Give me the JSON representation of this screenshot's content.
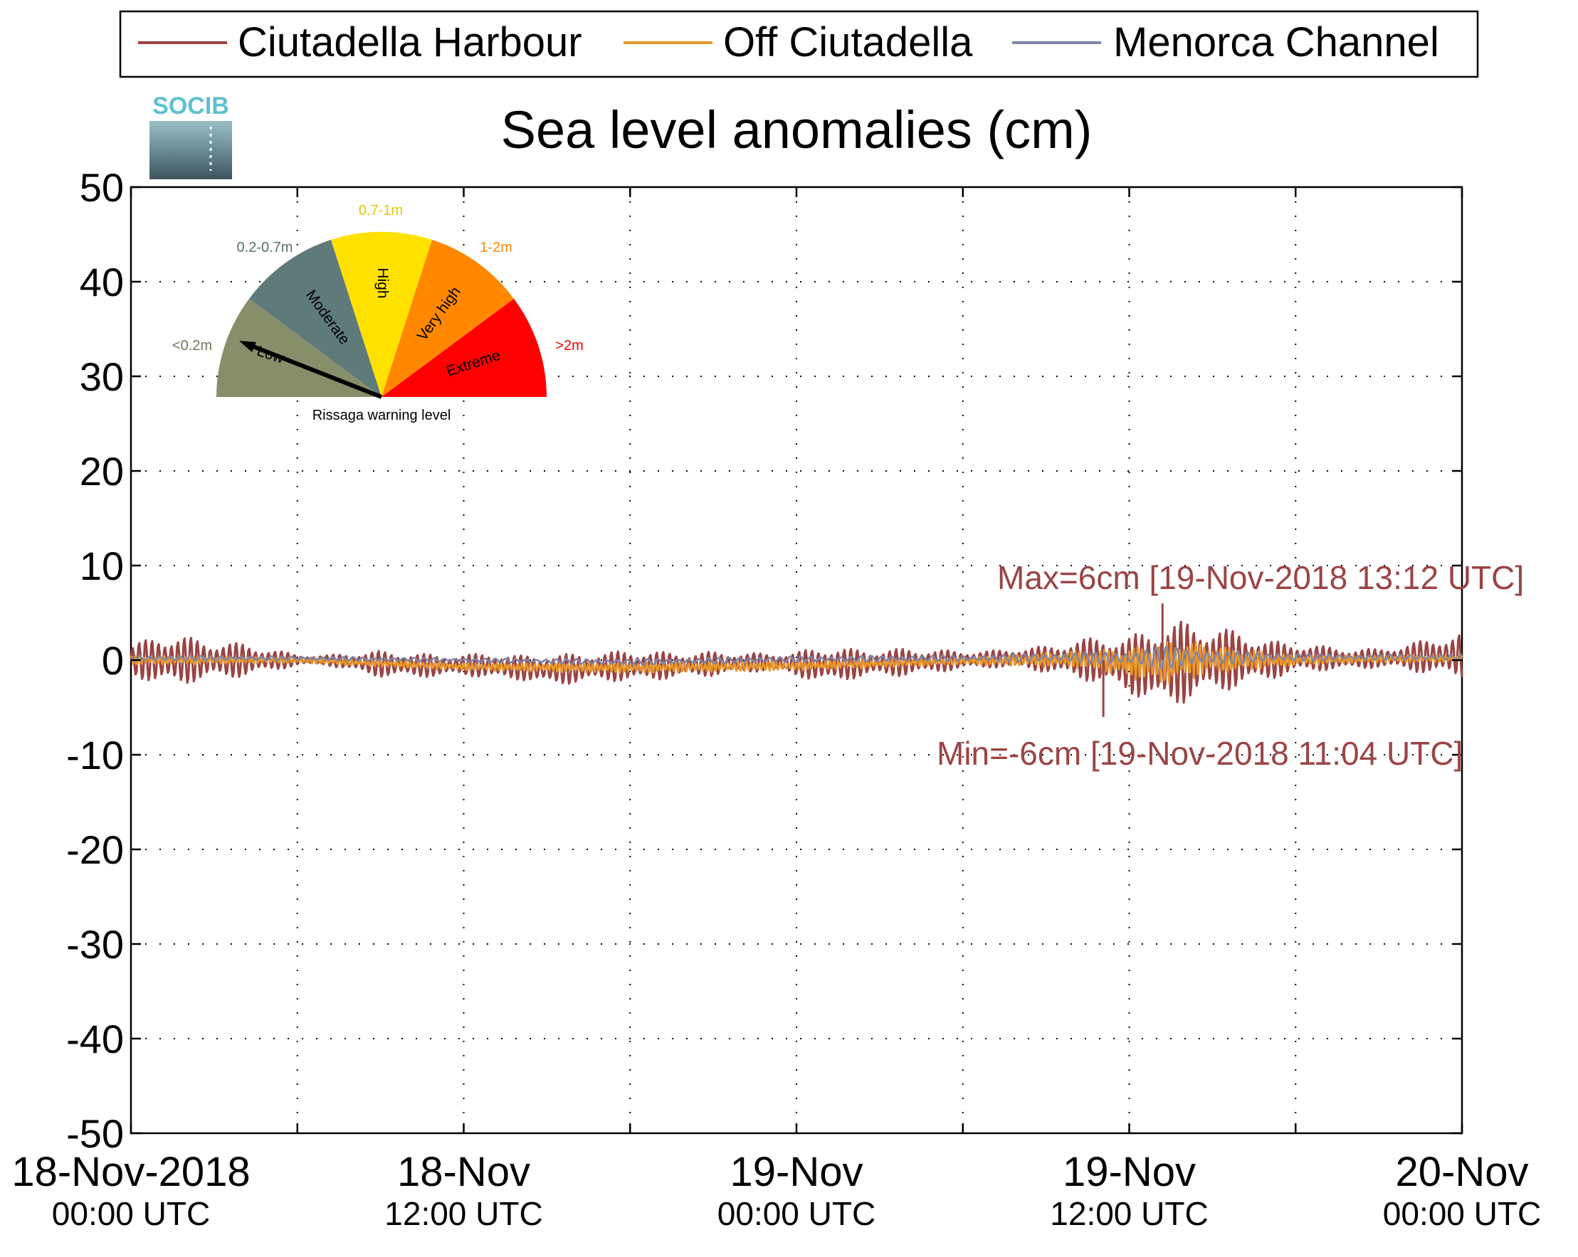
{
  "chart_data": {
    "type": "line",
    "title": "Sea level anomalies (cm)",
    "xlabel": "",
    "ylabel": "",
    "ylim": [
      -50,
      50
    ],
    "yticks": [
      50,
      40,
      30,
      20,
      10,
      0,
      -10,
      -20,
      -30,
      -40,
      -50
    ],
    "yticklabels": [
      "50",
      "40",
      "30",
      "20",
      "10",
      "0",
      "-10",
      "-20",
      "-30",
      "-40",
      "-50"
    ],
    "xlim": [
      "2018-11-18 00:00 UTC",
      "2018-11-20 00:00 UTC"
    ],
    "xticks": [
      {
        "line1": "18-Nov-2018",
        "line2": "00:00 UTC",
        "hours": 0
      },
      {
        "line1": "18-Nov",
        "line2": "12:00 UTC",
        "hours": 12
      },
      {
        "line1": "19-Nov",
        "line2": "00:00 UTC",
        "hours": 24
      },
      {
        "line1": "19-Nov",
        "line2": "12:00 UTC",
        "hours": 36
      },
      {
        "line1": "20-Nov",
        "line2": "00:00 UTC",
        "hours": 48
      }
    ],
    "grid": true,
    "legend_position": "top",
    "legend": [
      "Ciutadella Harbour",
      "Off Ciutadella",
      "Menorca Channel"
    ],
    "series": [
      {
        "name": "Ciutadella Harbour",
        "color": "#9b4444",
        "x_hours": [
          0,
          1,
          2,
          3,
          4,
          5,
          6,
          7,
          8,
          9,
          10,
          11,
          12,
          13,
          14,
          15,
          16,
          17,
          18,
          19,
          20,
          21,
          22,
          23,
          24,
          25,
          26,
          27,
          28,
          29,
          30,
          31,
          32,
          33,
          34,
          35,
          36,
          37,
          38,
          39,
          40,
          41,
          42,
          43,
          44,
          45,
          46,
          47,
          48
        ],
        "amplitude_cm": [
          1.5,
          2.8,
          2.5,
          2.0,
          1.8,
          1.2,
          0.6,
          0.5,
          1.0,
          1.4,
          1.3,
          1.2,
          1.1,
          1.4,
          1.3,
          1.6,
          1.6,
          1.5,
          1.7,
          1.5,
          1.3,
          1.3,
          1.1,
          0.9,
          1.3,
          2.0,
          1.6,
          1.4,
          1.5,
          1.2,
          1.0,
          0.9,
          1.1,
          1.4,
          2.0,
          2.6,
          3.0,
          4.5,
          4.4,
          3.6,
          3.0,
          2.1,
          1.6,
          1.3,
          1.1,
          1.0,
          1.4,
          2.0,
          2.4
        ],
        "mean_cm": [
          0,
          0,
          0,
          0,
          0,
          0,
          0,
          0,
          -0.2,
          -0.4,
          -0.5,
          -0.6,
          -0.5,
          -0.6,
          -0.8,
          -1.0,
          -0.9,
          -0.7,
          -0.6,
          -0.6,
          -0.5,
          -0.4,
          -0.3,
          -0.2,
          -0.4,
          -0.5,
          -0.4,
          -0.3,
          -0.2,
          -0.1,
          0,
          0.1,
          0.2,
          0.1,
          0.1,
          0,
          -0.5,
          -0.6,
          -0.2,
          0,
          0.1,
          0,
          0.2,
          0.2,
          0.1,
          0.2,
          0.3,
          0.4,
          0.5
        ],
        "max": {
          "value": 6,
          "time": "19-Nov-2018 13:12 UTC"
        },
        "min": {
          "value": -6,
          "time": "19-Nov-2018 11:04 UTC"
        }
      },
      {
        "name": "Off Ciutadella",
        "color": "#e8962a",
        "x_hours": [
          0,
          6,
          12,
          18,
          24,
          30,
          34,
          36,
          37,
          38,
          39,
          40,
          42,
          44,
          48
        ],
        "amplitude_cm": [
          0.5,
          0.3,
          0.4,
          0.6,
          0.5,
          0.4,
          0.9,
          1.6,
          2.4,
          2.2,
          1.6,
          1.2,
          0.6,
          0.4,
          0.4
        ],
        "mean_cm": [
          0,
          0,
          -0.7,
          -0.8,
          -0.6,
          -0.1,
          0.1,
          -0.3,
          -0.3,
          0,
          0.1,
          0,
          0,
          0.1,
          0.2
        ]
      },
      {
        "name": "Menorca Channel",
        "color": "#7f87a8",
        "x_hours": [
          0,
          6,
          12,
          18,
          24,
          30,
          34,
          36,
          37,
          38,
          39,
          40,
          42,
          44,
          48
        ],
        "amplitude_cm": [
          0.3,
          0.2,
          0.2,
          0.3,
          0.3,
          0.3,
          0.5,
          0.8,
          1.2,
          1.1,
          0.8,
          0.6,
          0.4,
          0.3,
          0.3
        ],
        "mean_cm": [
          0.2,
          0.2,
          0,
          -0.2,
          0.1,
          0.2,
          0.3,
          0.2,
          0.3,
          0.3,
          0.3,
          0.3,
          0.3,
          0.3,
          0.3
        ]
      }
    ],
    "annotations": [
      {
        "text": "Max=6cm [19-Nov-2018 13:12 UTC]",
        "color": "#9b4444"
      },
      {
        "text": "Min=-6cm [19-Nov-2018 11:04 UTC]",
        "color": "#9b4444"
      }
    ]
  },
  "logo": {
    "text": "SOCIB"
  },
  "gauge": {
    "caption": "Rissaga warning level",
    "needle_level": "Low",
    "sectors": [
      {
        "label": "Low",
        "range": "<0.2m",
        "color": "#878e6a",
        "range_color": "#6e7652"
      },
      {
        "label": "Moderate",
        "range": "0.2-0.7m",
        "color": "#5f7a7b",
        "range_color": "#56706f"
      },
      {
        "label": "High",
        "range": "0.7-1m",
        "color": "#ffe100",
        "range_color": "#e8c800"
      },
      {
        "label": "Very high",
        "range": "1-2m",
        "color": "#ff8800",
        "range_color": "#ff8800"
      },
      {
        "label": "Extreme",
        "range": ">2m",
        "color": "#ff0000",
        "range_color": "#ff0000"
      }
    ]
  }
}
